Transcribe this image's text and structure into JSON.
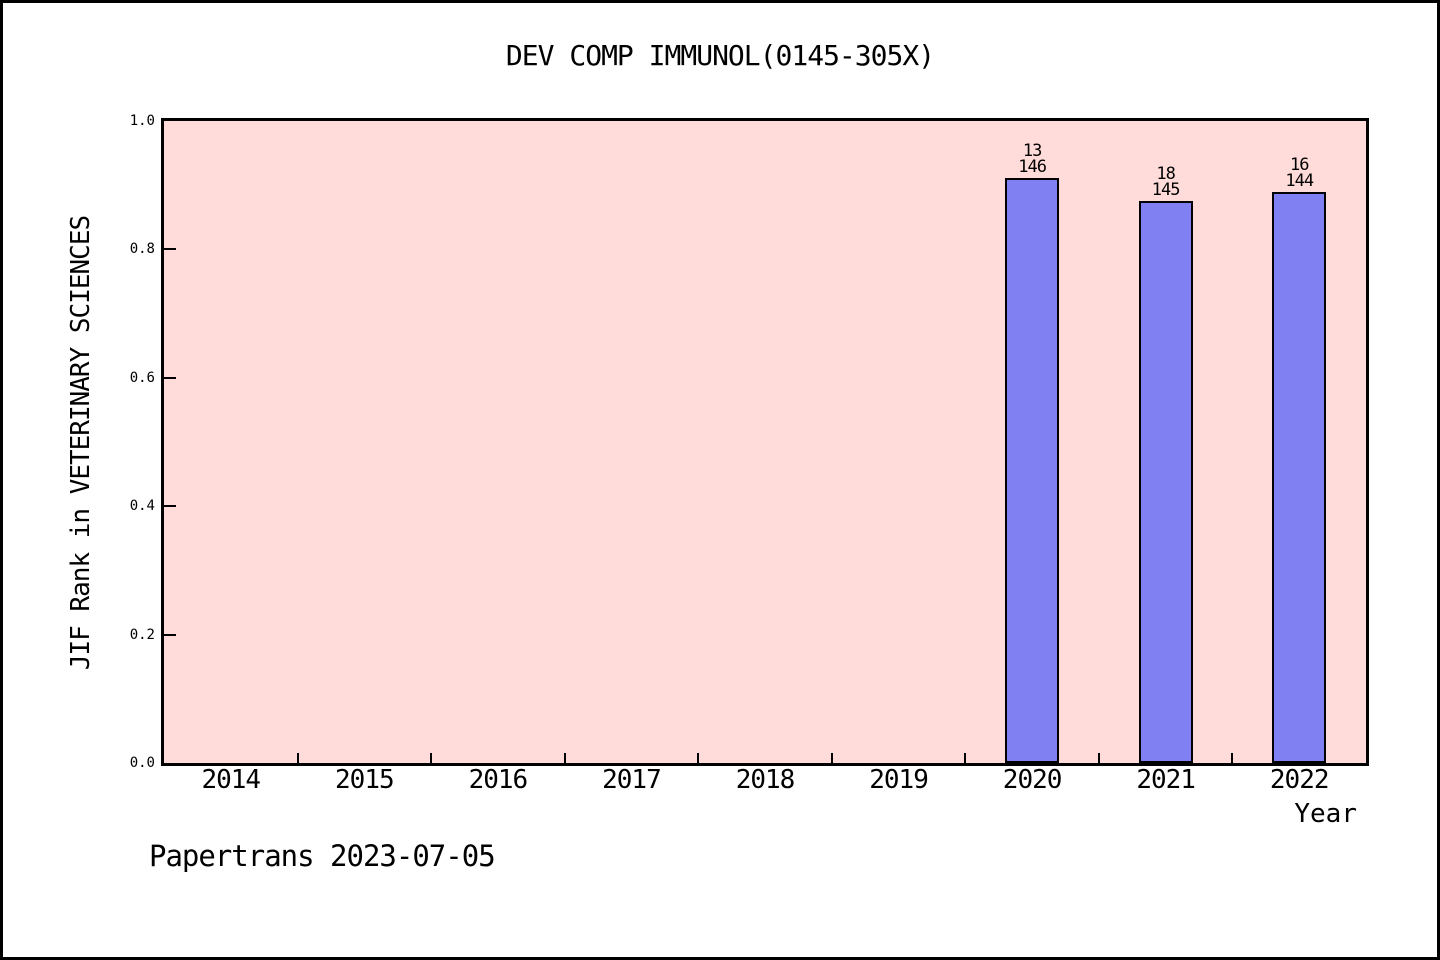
{
  "page": {
    "footer": "Papertrans 2023-07-05"
  },
  "chart_data": {
    "type": "bar",
    "title": "DEV COMP IMMUNOL(0145-305X)",
    "xlabel": "Year",
    "ylabel": "JIF Rank in VETERINARY SCIENCES",
    "categories": [
      "2014",
      "2015",
      "2016",
      "2017",
      "2018",
      "2019",
      "2020",
      "2021",
      "2022"
    ],
    "y_ticks": [
      "0.0",
      "0.2",
      "0.4",
      "0.6",
      "0.8",
      "1.0"
    ],
    "ylim": [
      0.0,
      1.0
    ],
    "grid": false,
    "legend": null,
    "series": [
      {
        "name": "JIF Rank in VETERINARY SCIENCES",
        "values": [
          null,
          null,
          null,
          null,
          null,
          null,
          0.911,
          0.876,
          0.889
        ]
      }
    ],
    "bars": [
      {
        "category": "2020",
        "rank": "13",
        "total": "146",
        "value": 0.911
      },
      {
        "category": "2021",
        "rank": "18",
        "total": "145",
        "value": 0.876
      },
      {
        "category": "2022",
        "rank": "16",
        "total": "144",
        "value": 0.889
      }
    ],
    "colors": {
      "plot_bg": "#ffdcd9",
      "bar_fill": "#8080f2",
      "bar_edge": "#000000",
      "frame": "#000000"
    }
  }
}
